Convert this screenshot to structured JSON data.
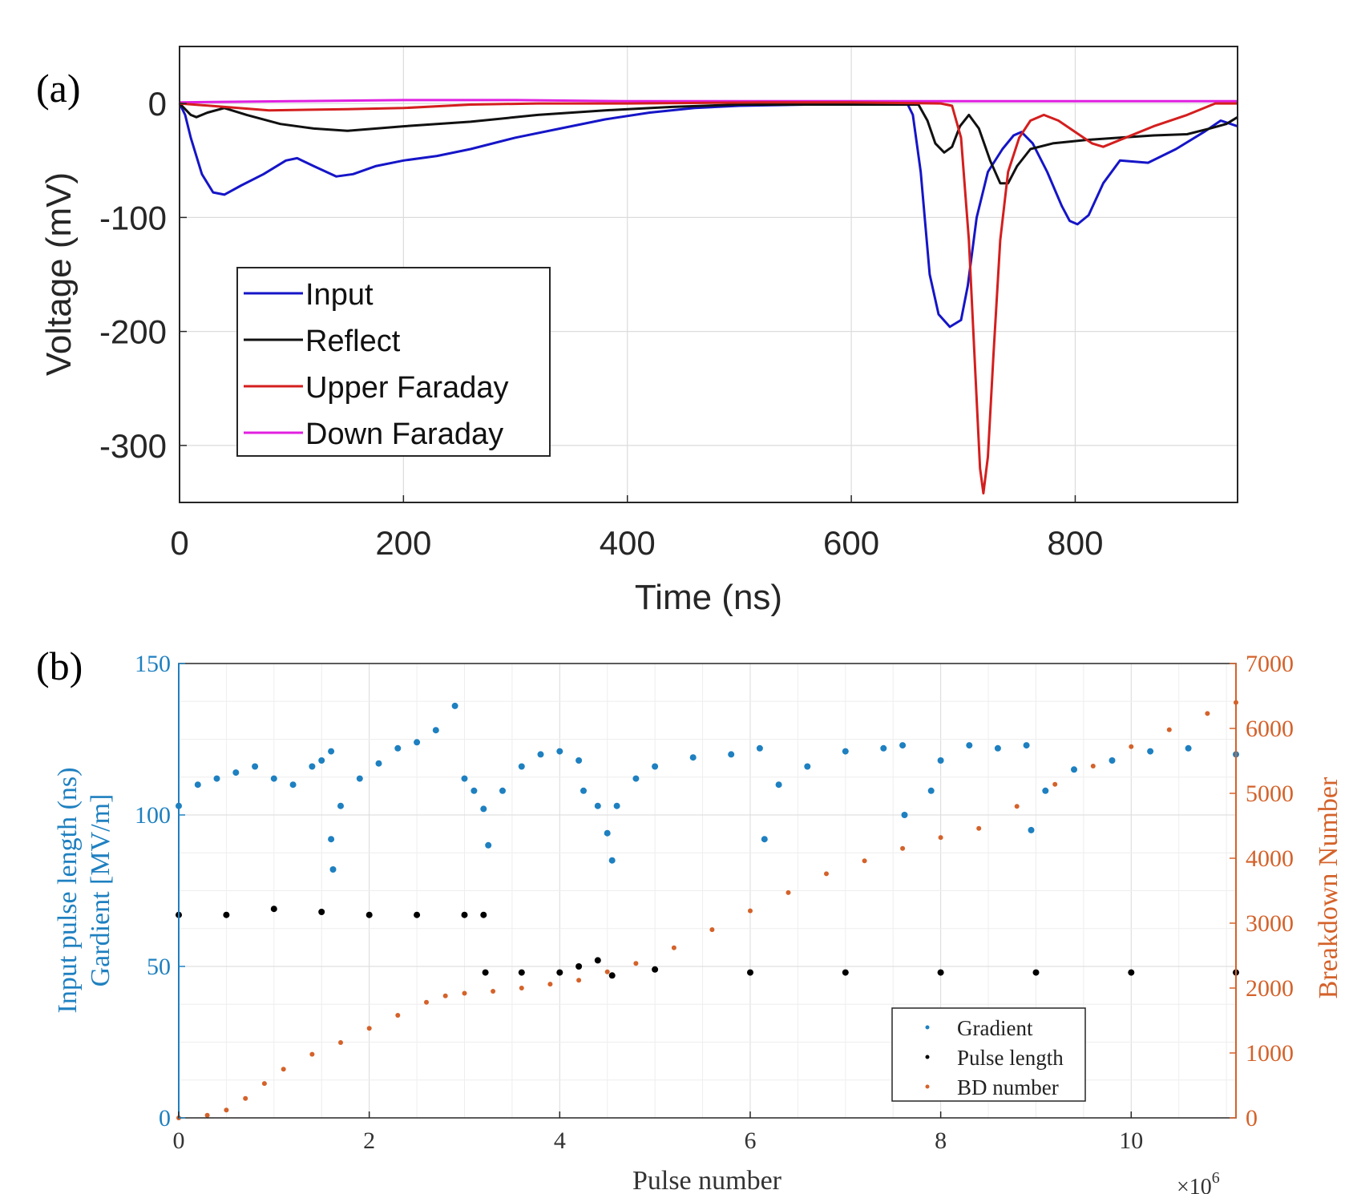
{
  "chart_data": [
    {
      "type": "line",
      "panel_label": "(a)",
      "xlabel": "Time (ns)",
      "ylabel": "Voltage (mV)",
      "xlim": [
        0,
        945
      ],
      "ylim": [
        -350,
        50
      ],
      "xticks": [
        0,
        200,
        400,
        600,
        800
      ],
      "yticks": [
        0,
        -100,
        -200,
        -300
      ],
      "grid": true,
      "legend_position": "lower-left",
      "series": [
        {
          "name": "Input",
          "color": "#1515c8",
          "points": [
            [
              0,
              0
            ],
            [
              5,
              -10
            ],
            [
              10,
              -30
            ],
            [
              20,
              -62
            ],
            [
              30,
              -78
            ],
            [
              40,
              -80
            ],
            [
              55,
              -72
            ],
            [
              75,
              -62
            ],
            [
              95,
              -50
            ],
            [
              105,
              -48
            ],
            [
              120,
              -55
            ],
            [
              140,
              -64
            ],
            [
              155,
              -62
            ],
            [
              175,
              -55
            ],
            [
              200,
              -50
            ],
            [
              230,
              -46
            ],
            [
              260,
              -40
            ],
            [
              300,
              -30
            ],
            [
              340,
              -22
            ],
            [
              380,
              -14
            ],
            [
              420,
              -8
            ],
            [
              460,
              -4
            ],
            [
              500,
              -2
            ],
            [
              560,
              -1
            ],
            [
              620,
              -1
            ],
            [
              650,
              0
            ],
            [
              655,
              -10
            ],
            [
              662,
              -60
            ],
            [
              670,
              -150
            ],
            [
              678,
              -185
            ],
            [
              688,
              -196
            ],
            [
              698,
              -190
            ],
            [
              704,
              -160
            ],
            [
              712,
              -100
            ],
            [
              722,
              -60
            ],
            [
              735,
              -40
            ],
            [
              745,
              -28
            ],
            [
              752,
              -25
            ],
            [
              762,
              -35
            ],
            [
              775,
              -60
            ],
            [
              788,
              -90
            ],
            [
              795,
              -103
            ],
            [
              802,
              -106
            ],
            [
              812,
              -98
            ],
            [
              825,
              -70
            ],
            [
              840,
              -50
            ],
            [
              865,
              -52
            ],
            [
              890,
              -40
            ],
            [
              915,
              -25
            ],
            [
              930,
              -15
            ],
            [
              945,
              -20
            ]
          ]
        },
        {
          "name": "Reflect",
          "color": "#111111",
          "points": [
            [
              0,
              0
            ],
            [
              5,
              -5
            ],
            [
              10,
              -10
            ],
            [
              15,
              -12
            ],
            [
              25,
              -8
            ],
            [
              40,
              -4
            ],
            [
              60,
              -10
            ],
            [
              90,
              -18
            ],
            [
              120,
              -22
            ],
            [
              150,
              -24
            ],
            [
              200,
              -20
            ],
            [
              260,
              -16
            ],
            [
              320,
              -10
            ],
            [
              380,
              -6
            ],
            [
              440,
              -3
            ],
            [
              500,
              -1
            ],
            [
              600,
              -1
            ],
            [
              660,
              -1
            ],
            [
              668,
              -15
            ],
            [
              675,
              -35
            ],
            [
              683,
              -43
            ],
            [
              690,
              -38
            ],
            [
              697,
              -20
            ],
            [
              705,
              -10
            ],
            [
              714,
              -22
            ],
            [
              724,
              -50
            ],
            [
              733,
              -70
            ],
            [
              740,
              -70
            ],
            [
              748,
              -55
            ],
            [
              760,
              -40
            ],
            [
              780,
              -35
            ],
            [
              810,
              -32
            ],
            [
              840,
              -30
            ],
            [
              870,
              -28
            ],
            [
              900,
              -27
            ],
            [
              920,
              -22
            ],
            [
              935,
              -18
            ],
            [
              945,
              -12
            ]
          ]
        },
        {
          "name": "Upper Faraday",
          "color": "#d41e1e",
          "points": [
            [
              0,
              0
            ],
            [
              40,
              -3
            ],
            [
              80,
              -6
            ],
            [
              150,
              -5
            ],
            [
              200,
              -4
            ],
            [
              260,
              -1
            ],
            [
              320,
              0
            ],
            [
              400,
              0
            ],
            [
              520,
              1
            ],
            [
              600,
              1
            ],
            [
              680,
              0
            ],
            [
              690,
              -2
            ],
            [
              698,
              -30
            ],
            [
              705,
              -120
            ],
            [
              711,
              -240
            ],
            [
              715,
              -320
            ],
            [
              718,
              -342
            ],
            [
              722,
              -310
            ],
            [
              727,
              -220
            ],
            [
              733,
              -120
            ],
            [
              740,
              -60
            ],
            [
              750,
              -30
            ],
            [
              760,
              -15
            ],
            [
              772,
              -10
            ],
            [
              785,
              -15
            ],
            [
              800,
              -25
            ],
            [
              815,
              -35
            ],
            [
              825,
              -38
            ],
            [
              845,
              -30
            ],
            [
              870,
              -20
            ],
            [
              900,
              -10
            ],
            [
              925,
              0
            ],
            [
              945,
              0
            ]
          ]
        },
        {
          "name": "Down Faraday",
          "color": "#e020e0",
          "points": [
            [
              0,
              1
            ],
            [
              100,
              2
            ],
            [
              200,
              3
            ],
            [
              300,
              3
            ],
            [
              400,
              2
            ],
            [
              500,
              2
            ],
            [
              600,
              2
            ],
            [
              700,
              2
            ],
            [
              800,
              2
            ],
            [
              945,
              2
            ]
          ]
        }
      ]
    },
    {
      "type": "scatter",
      "panel_label": "(b)",
      "xlabel": "Pulse number",
      "x_exponent_label": "×10",
      "x_exponent_power": "6",
      "ylabel_left_line1": "Input pulse length (ns)",
      "ylabel_left_line2": "Gardient [MV/m]",
      "ylabel_right": "Breakdown Number",
      "xlim": [
        0,
        11.1
      ],
      "ylim_left": [
        0,
        150
      ],
      "ylim_right": [
        0,
        7000
      ],
      "xticks": [
        0,
        2,
        4,
        6,
        8,
        10
      ],
      "yticks_left": [
        0,
        50,
        100,
        150
      ],
      "yticks_right": [
        0,
        1000,
        2000,
        3000,
        4000,
        5000,
        6000,
        7000
      ],
      "grid": true,
      "legend_position": "lower-right",
      "series": [
        {
          "name": "Gradient",
          "axis": "left",
          "color": "#1e80c0",
          "points": [
            [
              0,
              103
            ],
            [
              0.2,
              110
            ],
            [
              0.4,
              112
            ],
            [
              0.6,
              114
            ],
            [
              0.8,
              116
            ],
            [
              1.0,
              112
            ],
            [
              1.2,
              110
            ],
            [
              1.4,
              116
            ],
            [
              1.5,
              118
            ],
            [
              1.6,
              121
            ],
            [
              1.6,
              92
            ],
            [
              1.62,
              82
            ],
            [
              1.7,
              103
            ],
            [
              1.9,
              112
            ],
            [
              2.1,
              117
            ],
            [
              2.3,
              122
            ],
            [
              2.5,
              124
            ],
            [
              2.7,
              128
            ],
            [
              2.9,
              136
            ],
            [
              3.0,
              112
            ],
            [
              3.1,
              108
            ],
            [
              3.2,
              102
            ],
            [
              3.25,
              90
            ],
            [
              3.4,
              108
            ],
            [
              3.6,
              116
            ],
            [
              3.8,
              120
            ],
            [
              4.0,
              121
            ],
            [
              4.2,
              118
            ],
            [
              4.25,
              108
            ],
            [
              4.4,
              103
            ],
            [
              4.5,
              94
            ],
            [
              4.55,
              85
            ],
            [
              4.6,
              103
            ],
            [
              4.8,
              112
            ],
            [
              5.0,
              116
            ],
            [
              5.4,
              119
            ],
            [
              5.8,
              120
            ],
            [
              6.1,
              122
            ],
            [
              6.15,
              92
            ],
            [
              6.3,
              110
            ],
            [
              6.6,
              116
            ],
            [
              7.0,
              121
            ],
            [
              7.4,
              122
            ],
            [
              7.6,
              123
            ],
            [
              7.62,
              100
            ],
            [
              7.9,
              108
            ],
            [
              8.0,
              118
            ],
            [
              8.3,
              123
            ],
            [
              8.6,
              122
            ],
            [
              8.9,
              123
            ],
            [
              8.95,
              95
            ],
            [
              9.1,
              108
            ],
            [
              9.4,
              115
            ],
            [
              9.8,
              118
            ],
            [
              10.2,
              121
            ],
            [
              10.6,
              122
            ],
            [
              11.1,
              120
            ]
          ]
        },
        {
          "name": "Pulse length",
          "axis": "left",
          "color": "#000000",
          "points": [
            [
              0,
              67
            ],
            [
              0.5,
              67
            ],
            [
              1.0,
              69
            ],
            [
              1.5,
              68
            ],
            [
              2.0,
              67
            ],
            [
              2.5,
              67
            ],
            [
              3.0,
              67
            ],
            [
              3.2,
              67
            ],
            [
              3.22,
              48
            ],
            [
              3.6,
              48
            ],
            [
              4.0,
              48
            ],
            [
              4.2,
              50
            ],
            [
              4.4,
              52
            ],
            [
              4.55,
              47
            ],
            [
              5.0,
              49
            ],
            [
              6.0,
              48
            ],
            [
              7.0,
              48
            ],
            [
              8.0,
              48
            ],
            [
              9.0,
              48
            ],
            [
              10.0,
              48
            ],
            [
              11.1,
              48
            ]
          ]
        },
        {
          "name": "BD number",
          "axis": "right",
          "color": "#d4622a",
          "points": [
            [
              0,
              0
            ],
            [
              0.3,
              40
            ],
            [
              0.5,
              120
            ],
            [
              0.7,
              300
            ],
            [
              0.9,
              530
            ],
            [
              1.1,
              750
            ],
            [
              1.4,
              980
            ],
            [
              1.7,
              1160
            ],
            [
              2.0,
              1380
            ],
            [
              2.3,
              1580
            ],
            [
              2.6,
              1780
            ],
            [
              2.8,
              1880
            ],
            [
              3.0,
              1920
            ],
            [
              3.3,
              1950
            ],
            [
              3.6,
              2000
            ],
            [
              3.9,
              2060
            ],
            [
              4.2,
              2120
            ],
            [
              4.5,
              2250
            ],
            [
              4.8,
              2380
            ],
            [
              5.2,
              2620
            ],
            [
              5.6,
              2900
            ],
            [
              6.0,
              3190
            ],
            [
              6.4,
              3470
            ],
            [
              6.8,
              3760
            ],
            [
              7.2,
              3960
            ],
            [
              7.6,
              4150
            ],
            [
              8.0,
              4320
            ],
            [
              8.4,
              4460
            ],
            [
              8.8,
              4800
            ],
            [
              9.2,
              5140
            ],
            [
              9.6,
              5420
            ],
            [
              10.0,
              5720
            ],
            [
              10.4,
              5980
            ],
            [
              10.8,
              6230
            ],
            [
              11.1,
              6400
            ]
          ]
        }
      ]
    }
  ]
}
